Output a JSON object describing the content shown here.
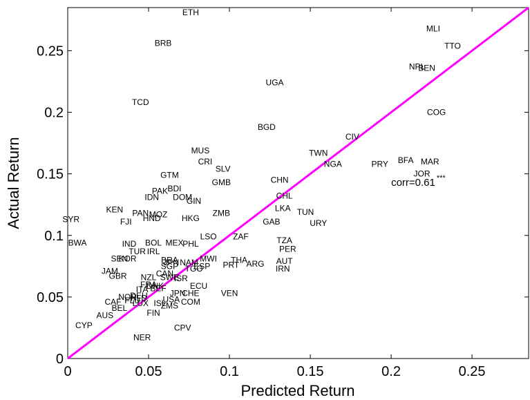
{
  "chart_data": {
    "type": "scatter",
    "xlabel": "Predicted Return",
    "ylabel": "Actual Return",
    "xlim": [
      0,
      0.285
    ],
    "ylim": [
      0,
      0.285
    ],
    "xticks": [
      0,
      0.05,
      0.1,
      0.15,
      0.2,
      0.25
    ],
    "xtick_labels": [
      "0",
      "0.05",
      "0.1",
      "0.15",
      "0.2",
      "0.25"
    ],
    "yticks": [
      0,
      0.05,
      0.1,
      0.15,
      0.2,
      0.25
    ],
    "ytick_labels": [
      "0",
      "0.05",
      "0.1",
      "0.15",
      "0.2",
      "0.25"
    ],
    "grid": false,
    "reference_line": {
      "from": [
        0,
        0
      ],
      "to": [
        0.285,
        0.285
      ],
      "color": "#ff00ff"
    },
    "annotation": {
      "text": "corr=0.61",
      "superscript": "***",
      "x": 0.2,
      "y": 0.143
    },
    "points": [
      {
        "label": "ETH",
        "x": 0.076,
        "y": 0.281
      },
      {
        "label": "MLI",
        "x": 0.226,
        "y": 0.268
      },
      {
        "label": "BRB",
        "x": 0.059,
        "y": 0.256
      },
      {
        "label": "TTO",
        "x": 0.238,
        "y": 0.254
      },
      {
        "label": "NPL",
        "x": 0.216,
        "y": 0.237
      },
      {
        "label": "BEN",
        "x": 0.222,
        "y": 0.236
      },
      {
        "label": "UGA",
        "x": 0.128,
        "y": 0.224
      },
      {
        "label": "TCD",
        "x": 0.045,
        "y": 0.208
      },
      {
        "label": "COG",
        "x": 0.228,
        "y": 0.2
      },
      {
        "label": "BGD",
        "x": 0.123,
        "y": 0.188
      },
      {
        "label": "CIV",
        "x": 0.176,
        "y": 0.18
      },
      {
        "label": "TWN",
        "x": 0.155,
        "y": 0.167
      },
      {
        "label": "MUS",
        "x": 0.082,
        "y": 0.169
      },
      {
        "label": "CRI",
        "x": 0.085,
        "y": 0.16
      },
      {
        "label": "BFA",
        "x": 0.209,
        "y": 0.161
      },
      {
        "label": "MAR",
        "x": 0.224,
        "y": 0.16
      },
      {
        "label": "PRY",
        "x": 0.193,
        "y": 0.158
      },
      {
        "label": "NGA",
        "x": 0.164,
        "y": 0.158
      },
      {
        "label": "SLV",
        "x": 0.096,
        "y": 0.154
      },
      {
        "label": "JOR",
        "x": 0.219,
        "y": 0.15
      },
      {
        "label": "GTM",
        "x": 0.063,
        "y": 0.149
      },
      {
        "label": "CHN",
        "x": 0.131,
        "y": 0.145
      },
      {
        "label": "GMB",
        "x": 0.095,
        "y": 0.143
      },
      {
        "label": "BDI",
        "x": 0.066,
        "y": 0.138
      },
      {
        "label": "PAK",
        "x": 0.057,
        "y": 0.136
      },
      {
        "label": "IDN",
        "x": 0.052,
        "y": 0.131
      },
      {
        "label": "DOM",
        "x": 0.071,
        "y": 0.131
      },
      {
        "label": "CHL",
        "x": 0.134,
        "y": 0.132
      },
      {
        "label": "GIN",
        "x": 0.078,
        "y": 0.128
      },
      {
        "label": "LKA",
        "x": 0.133,
        "y": 0.122
      },
      {
        "label": "KEN",
        "x": 0.029,
        "y": 0.121
      },
      {
        "label": "TUN",
        "x": 0.147,
        "y": 0.119
      },
      {
        "label": "PAN",
        "x": 0.045,
        "y": 0.118
      },
      {
        "label": "MOZ",
        "x": 0.056,
        "y": 0.117
      },
      {
        "label": "ZMB",
        "x": 0.095,
        "y": 0.118
      },
      {
        "label": "SYR",
        "x": 0.002,
        "y": 0.113
      },
      {
        "label": "HND",
        "x": 0.052,
        "y": 0.114
      },
      {
        "label": "HKG",
        "x": 0.076,
        "y": 0.114
      },
      {
        "label": "FJI",
        "x": 0.036,
        "y": 0.111
      },
      {
        "label": "GAB",
        "x": 0.126,
        "y": 0.111
      },
      {
        "label": "URY",
        "x": 0.155,
        "y": 0.11
      },
      {
        "label": "LSO",
        "x": 0.087,
        "y": 0.099
      },
      {
        "label": "ZAF",
        "x": 0.107,
        "y": 0.099
      },
      {
        "label": "TZA",
        "x": 0.134,
        "y": 0.096
      },
      {
        "label": "BOL",
        "x": 0.053,
        "y": 0.094
      },
      {
        "label": "MEX",
        "x": 0.066,
        "y": 0.094
      },
      {
        "label": "PHL",
        "x": 0.076,
        "y": 0.093
      },
      {
        "label": "IND",
        "x": 0.038,
        "y": 0.093
      },
      {
        "label": "BWA",
        "x": 0.006,
        "y": 0.094
      },
      {
        "label": "PER",
        "x": 0.136,
        "y": 0.089
      },
      {
        "label": "TUR",
        "x": 0.043,
        "y": 0.087
      },
      {
        "label": "IRL",
        "x": 0.053,
        "y": 0.087
      },
      {
        "label": "SEN",
        "x": 0.032,
        "y": 0.081
      },
      {
        "label": "KOR",
        "x": 0.037,
        "y": 0.081
      },
      {
        "label": "BRA",
        "x": 0.063,
        "y": 0.08
      },
      {
        "label": "MWI",
        "x": 0.087,
        "y": 0.081
      },
      {
        "label": "THA",
        "x": 0.106,
        "y": 0.08
      },
      {
        "label": "AUT",
        "x": 0.134,
        "y": 0.079
      },
      {
        "label": "JPN",
        "x": 0.064,
        "y": 0.078
      },
      {
        "label": "NAM",
        "x": 0.075,
        "y": 0.078
      },
      {
        "label": "ARG",
        "x": 0.116,
        "y": 0.077
      },
      {
        "label": "PRT",
        "x": 0.101,
        "y": 0.076
      },
      {
        "label": "SGP",
        "x": 0.063,
        "y": 0.075
      },
      {
        "label": "ESP",
        "x": 0.083,
        "y": 0.075
      },
      {
        "label": "TGO",
        "x": 0.078,
        "y": 0.073
      },
      {
        "label": "IRN",
        "x": 0.133,
        "y": 0.073
      },
      {
        "label": "JAM",
        "x": 0.026,
        "y": 0.071
      },
      {
        "label": "CAN",
        "x": 0.06,
        "y": 0.069
      },
      {
        "label": "GBR",
        "x": 0.031,
        "y": 0.067
      },
      {
        "label": "NZL",
        "x": 0.05,
        "y": 0.066
      },
      {
        "label": "SWE",
        "x": 0.063,
        "y": 0.066
      },
      {
        "label": "ISR",
        "x": 0.07,
        "y": 0.065
      },
      {
        "label": "FRA",
        "x": 0.05,
        "y": 0.06
      },
      {
        "label": "DNK",
        "x": 0.054,
        "y": 0.059
      },
      {
        "label": "ECU",
        "x": 0.081,
        "y": 0.059
      },
      {
        "label": "BEF",
        "x": 0.056,
        "y": 0.057
      },
      {
        "label": "ITA",
        "x": 0.046,
        "y": 0.056
      },
      {
        "label": "CHE",
        "x": 0.076,
        "y": 0.053
      },
      {
        "label": "JPN",
        "x": 0.068,
        "y": 0.053
      },
      {
        "label": "VEN",
        "x": 0.1,
        "y": 0.053
      },
      {
        "label": "NOR",
        "x": 0.037,
        "y": 0.05
      },
      {
        "label": "DEU",
        "x": 0.044,
        "y": 0.051
      },
      {
        "label": "NLD",
        "x": 0.044,
        "y": 0.049
      },
      {
        "label": "FLU",
        "x": 0.04,
        "y": 0.047
      },
      {
        "label": "USA",
        "x": 0.064,
        "y": 0.048
      },
      {
        "label": "CAF",
        "x": 0.028,
        "y": 0.046
      },
      {
        "label": "LUX",
        "x": 0.045,
        "y": 0.045
      },
      {
        "label": "COM",
        "x": 0.076,
        "y": 0.046
      },
      {
        "label": "ISL",
        "x": 0.057,
        "y": 0.045
      },
      {
        "label": "ZMS",
        "x": 0.063,
        "y": 0.043
      },
      {
        "label": "BEL",
        "x": 0.032,
        "y": 0.041
      },
      {
        "label": "FIN",
        "x": 0.053,
        "y": 0.037
      },
      {
        "label": "AUS",
        "x": 0.023,
        "y": 0.035
      },
      {
        "label": "CYP",
        "x": 0.01,
        "y": 0.027
      },
      {
        "label": "CPV",
        "x": 0.071,
        "y": 0.025
      },
      {
        "label": "NER",
        "x": 0.046,
        "y": 0.017
      }
    ]
  }
}
